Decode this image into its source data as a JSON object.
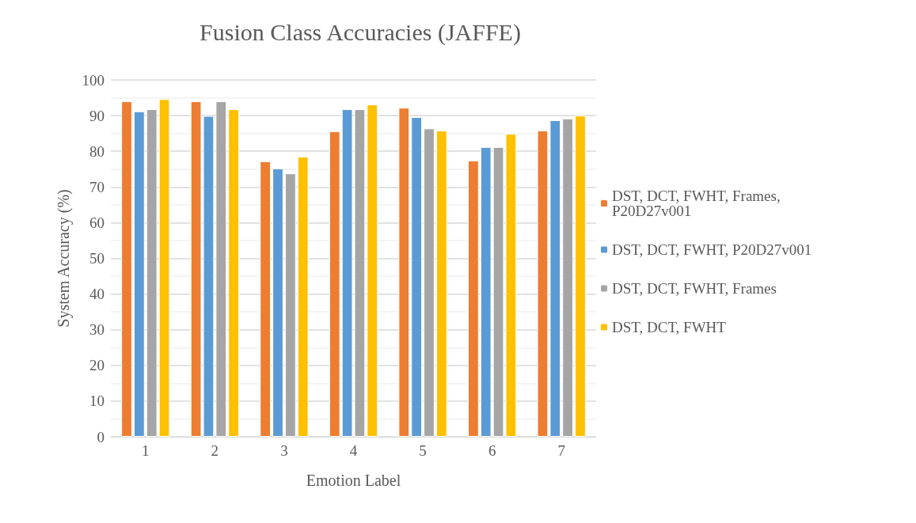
{
  "chart_data": {
    "type": "bar",
    "title": "Fusion Class Accuracies (JAFFE)",
    "xlabel": "Emotion Label",
    "ylabel": "System Accuracy (%)",
    "categories": [
      "1",
      "2",
      "3",
      "4",
      "5",
      "6",
      "7"
    ],
    "series": [
      {
        "name": "DST, DCT, FWHT, Frames, P20D27v001",
        "color": "#ed7d31",
        "values": [
          94.0,
          94.0,
          77.2,
          85.6,
          92.2,
          77.4,
          85.8
        ]
      },
      {
        "name": "DST, DCT, FWHT, P20D27v001",
        "color": "#5b9bd5",
        "values": [
          91.2,
          89.9,
          75.2,
          91.8,
          89.6,
          81.2,
          88.7
        ]
      },
      {
        "name": "DST, DCT, FWHT, Frames",
        "color": "#a5a5a5",
        "values": [
          91.8,
          94.0,
          73.8,
          91.8,
          86.4,
          81.2,
          89.2
        ]
      },
      {
        "name": "DST, DCT, FWHT",
        "color": "#ffc000",
        "values": [
          94.6,
          91.8,
          78.5,
          93.1,
          85.8,
          84.9,
          90.0
        ]
      }
    ],
    "ylim": [
      0,
      100
    ],
    "yticks": [
      0,
      10,
      20,
      30,
      40,
      50,
      60,
      70,
      80,
      90,
      100
    ],
    "grid": "y",
    "legend": "right"
  }
}
